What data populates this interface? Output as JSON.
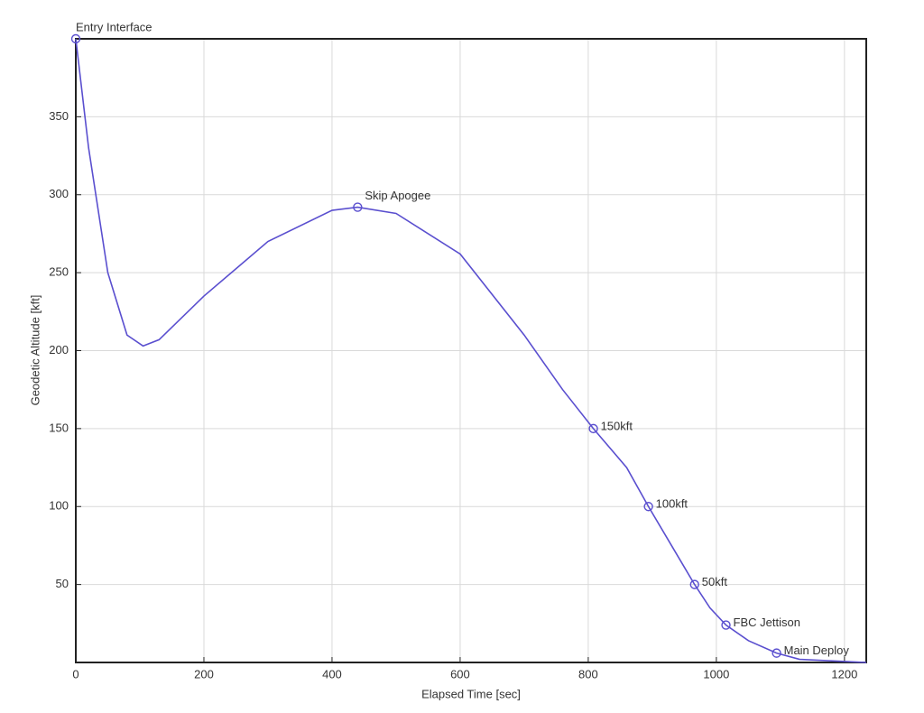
{
  "chart_data": {
    "type": "line",
    "xlabel": "Elapsed Time [sec]",
    "ylabel": "Geodetic Altitude [kft]",
    "x": [
      0,
      20,
      50,
      80,
      105,
      130,
      200,
      300,
      400,
      440,
      500,
      600,
      700,
      760,
      808,
      860,
      894,
      930,
      966,
      990,
      1015,
      1050,
      1094,
      1130,
      1234
    ],
    "series": [
      {
        "color": "#5a4fcf",
        "values": [
          400,
          330,
          250,
          210,
          203,
          207,
          235,
          270,
          290,
          292,
          288,
          262,
          210,
          175,
          150,
          125,
          100,
          75,
          50,
          35,
          24,
          14,
          6,
          2,
          0
        ]
      }
    ],
    "annotations": [
      {
        "text": "Entry Interface",
        "x": 0,
        "y": 400
      },
      {
        "text": "Skip Apogee",
        "x": 440,
        "y": 292
      },
      {
        "text": "150kft",
        "x": 808,
        "y": 150
      },
      {
        "text": "100kft",
        "x": 894,
        "y": 100
      },
      {
        "text": "50kft",
        "x": 966,
        "y": 50
      },
      {
        "text": "FBC Jettison",
        "x": 1015,
        "y": 24
      },
      {
        "text": "Main Deploy",
        "x": 1094,
        "y": 6
      }
    ],
    "xlim": [
      0,
      1234
    ],
    "ylim": [
      0,
      400
    ],
    "xticks": [
      0,
      200,
      400,
      600,
      800,
      1000,
      1200
    ],
    "yticks": [
      50,
      100,
      150,
      200,
      250,
      300,
      350
    ],
    "grid": true
  }
}
